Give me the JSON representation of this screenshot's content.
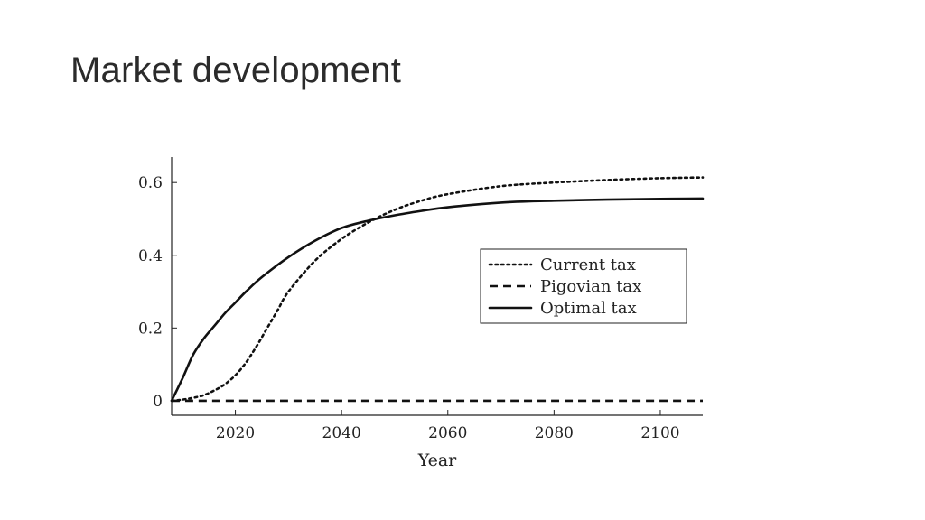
{
  "slide": {
    "title": "Market development"
  },
  "chart_data": {
    "type": "line",
    "title": "",
    "xlabel": "Year",
    "ylabel": "",
    "xlim": [
      2008,
      2108
    ],
    "ylim": [
      -0.04,
      0.67
    ],
    "xticks": [
      2020,
      2040,
      2060,
      2080,
      2100
    ],
    "xtick_labels": [
      "2020",
      "2040",
      "2060",
      "2080",
      "2100"
    ],
    "yticks": [
      0,
      0.2,
      0.4,
      0.6
    ],
    "ytick_labels": [
      "0",
      "0.2",
      "0.4",
      "0.6"
    ],
    "grid": false,
    "legend_position": "center-right",
    "series": [
      {
        "name": "Current tax",
        "style": "dotted",
        "color": "#111111",
        "x": [
          2008,
          2010,
          2012,
          2014,
          2016,
          2018,
          2020,
          2022,
          2024,
          2026,
          2028,
          2030,
          2035,
          2040,
          2045,
          2050,
          2055,
          2060,
          2070,
          2080,
          2090,
          2100,
          2108
        ],
        "y": [
          0,
          0.003,
          0.008,
          0.015,
          0.028,
          0.045,
          0.07,
          0.105,
          0.15,
          0.2,
          0.25,
          0.3,
          0.385,
          0.445,
          0.49,
          0.525,
          0.55,
          0.568,
          0.59,
          0.6,
          0.607,
          0.612,
          0.614
        ]
      },
      {
        "name": "Pigovian tax",
        "style": "dashed",
        "color": "#111111",
        "x": [
          2008,
          2108
        ],
        "y": [
          0,
          0
        ]
      },
      {
        "name": "Optimal tax",
        "style": "solid",
        "color": "#111111",
        "x": [
          2008,
          2010,
          2012,
          2014,
          2016,
          2018,
          2020,
          2022,
          2025,
          2030,
          2035,
          2040,
          2045,
          2050,
          2055,
          2060,
          2070,
          2080,
          2090,
          2100,
          2108
        ],
        "y": [
          0,
          0.06,
          0.125,
          0.17,
          0.205,
          0.24,
          0.27,
          0.3,
          0.34,
          0.395,
          0.44,
          0.475,
          0.495,
          0.51,
          0.522,
          0.532,
          0.545,
          0.55,
          0.553,
          0.555,
          0.556
        ]
      }
    ]
  }
}
